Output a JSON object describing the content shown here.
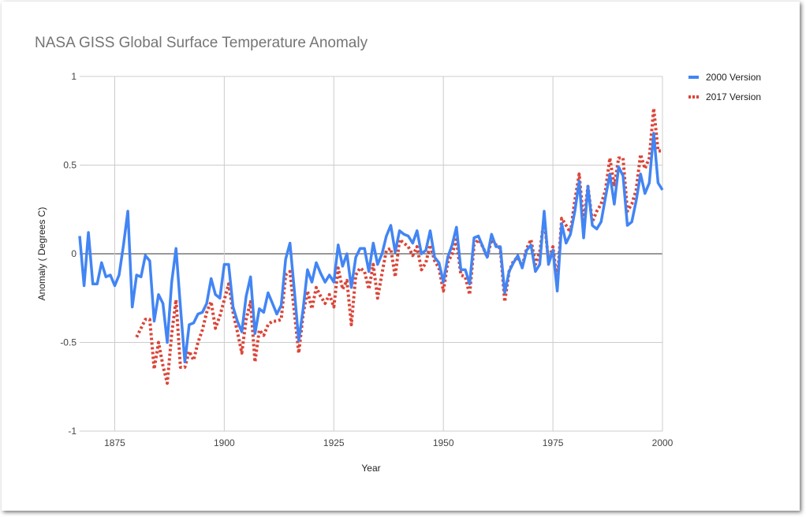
{
  "chart_data": {
    "type": "line",
    "title": "NASA GISS Global Surface Temperature Anomaly",
    "xlabel": "Year",
    "ylabel": "Anomaly ( Degrees C)",
    "xlim": [
      1867,
      2000
    ],
    "ylim": [
      -1,
      1
    ],
    "x_ticks": [
      "1875",
      "1900",
      "1925",
      "1950",
      "1975",
      "2000"
    ],
    "y_ticks": [
      "1",
      "0.5",
      "0",
      "-0.5",
      "-1"
    ],
    "grid": true,
    "legend_position": "right",
    "series": [
      {
        "name": "2000 Version",
        "color": "#4285f4",
        "style": "solid",
        "points": [
          [
            1867,
            0.1
          ],
          [
            1868,
            -0.18
          ],
          [
            1869,
            0.12
          ],
          [
            1870,
            -0.17
          ],
          [
            1871,
            -0.17
          ],
          [
            1872,
            -0.05
          ],
          [
            1873,
            -0.13
          ],
          [
            1874,
            -0.12
          ],
          [
            1875,
            -0.18
          ],
          [
            1876,
            -0.12
          ],
          [
            1877,
            0.05
          ],
          [
            1878,
            0.24
          ],
          [
            1879,
            -0.3
          ],
          [
            1880,
            -0.12
          ],
          [
            1881,
            -0.13
          ],
          [
            1882,
            -0.01
          ],
          [
            1883,
            -0.04
          ],
          [
            1884,
            -0.38
          ],
          [
            1885,
            -0.23
          ],
          [
            1886,
            -0.28
          ],
          [
            1887,
            -0.5
          ],
          [
            1888,
            -0.16
          ],
          [
            1889,
            0.03
          ],
          [
            1890,
            -0.3
          ],
          [
            1891,
            -0.61
          ],
          [
            1892,
            -0.4
          ],
          [
            1893,
            -0.39
          ],
          [
            1894,
            -0.34
          ],
          [
            1895,
            -0.33
          ],
          [
            1896,
            -0.28
          ],
          [
            1897,
            -0.14
          ],
          [
            1898,
            -0.23
          ],
          [
            1899,
            -0.25
          ],
          [
            1900,
            -0.06
          ],
          [
            1901,
            -0.06
          ],
          [
            1902,
            -0.3
          ],
          [
            1903,
            -0.38
          ],
          [
            1904,
            -0.44
          ],
          [
            1905,
            -0.24
          ],
          [
            1906,
            -0.13
          ],
          [
            1907,
            -0.45
          ],
          [
            1908,
            -0.31
          ],
          [
            1909,
            -0.33
          ],
          [
            1910,
            -0.22
          ],
          [
            1911,
            -0.28
          ],
          [
            1912,
            -0.34
          ],
          [
            1913,
            -0.29
          ],
          [
            1914,
            -0.03
          ],
          [
            1915,
            0.06
          ],
          [
            1916,
            -0.21
          ],
          [
            1917,
            -0.49
          ],
          [
            1918,
            -0.31
          ],
          [
            1919,
            -0.09
          ],
          [
            1920,
            -0.16
          ],
          [
            1921,
            -0.05
          ],
          [
            1922,
            -0.11
          ],
          [
            1923,
            -0.16
          ],
          [
            1924,
            -0.12
          ],
          [
            1925,
            -0.16
          ],
          [
            1926,
            0.05
          ],
          [
            1927,
            -0.07
          ],
          [
            1928,
            0.0
          ],
          [
            1929,
            -0.19
          ],
          [
            1930,
            -0.02
          ],
          [
            1931,
            0.03
          ],
          [
            1932,
            0.03
          ],
          [
            1933,
            -0.1
          ],
          [
            1934,
            0.06
          ],
          [
            1935,
            -0.06
          ],
          [
            1936,
            0.0
          ],
          [
            1937,
            0.1
          ],
          [
            1938,
            0.16
          ],
          [
            1939,
            0.01
          ],
          [
            1940,
            0.13
          ],
          [
            1941,
            0.11
          ],
          [
            1942,
            0.1
          ],
          [
            1943,
            0.06
          ],
          [
            1944,
            0.13
          ],
          [
            1945,
            0.0
          ],
          [
            1946,
            0.02
          ],
          [
            1947,
            0.13
          ],
          [
            1948,
            -0.02
          ],
          [
            1949,
            -0.05
          ],
          [
            1950,
            -0.16
          ],
          [
            1951,
            -0.02
          ],
          [
            1952,
            0.05
          ],
          [
            1953,
            0.15
          ],
          [
            1954,
            -0.09
          ],
          [
            1955,
            -0.09
          ],
          [
            1956,
            -0.17
          ],
          [
            1957,
            0.09
          ],
          [
            1958,
            0.1
          ],
          [
            1959,
            0.04
          ],
          [
            1960,
            -0.02
          ],
          [
            1961,
            0.11
          ],
          [
            1962,
            0.04
          ],
          [
            1963,
            0.04
          ],
          [
            1964,
            -0.22
          ],
          [
            1965,
            -0.1
          ],
          [
            1966,
            -0.05
          ],
          [
            1967,
            -0.01
          ],
          [
            1968,
            -0.08
          ],
          [
            1969,
            0.02
          ],
          [
            1970,
            0.05
          ],
          [
            1971,
            -0.1
          ],
          [
            1972,
            -0.06
          ],
          [
            1973,
            0.24
          ],
          [
            1974,
            -0.06
          ],
          [
            1975,
            0.02
          ],
          [
            1976,
            -0.21
          ],
          [
            1977,
            0.17
          ],
          [
            1978,
            0.06
          ],
          [
            1979,
            0.11
          ],
          [
            1980,
            0.24
          ],
          [
            1981,
            0.41
          ],
          [
            1982,
            0.09
          ],
          [
            1983,
            0.38
          ],
          [
            1984,
            0.16
          ],
          [
            1985,
            0.14
          ],
          [
            1986,
            0.18
          ],
          [
            1987,
            0.32
          ],
          [
            1988,
            0.45
          ],
          [
            1989,
            0.28
          ],
          [
            1990,
            0.49
          ],
          [
            1991,
            0.44
          ],
          [
            1992,
            0.16
          ],
          [
            1993,
            0.18
          ],
          [
            1994,
            0.3
          ],
          [
            1995,
            0.45
          ],
          [
            1996,
            0.34
          ],
          [
            1997,
            0.4
          ],
          [
            1998,
            0.68
          ],
          [
            1999,
            0.4
          ],
          [
            2000,
            0.36
          ]
        ]
      },
      {
        "name": "2017 Version",
        "color": "#db4437",
        "style": "dotted",
        "points": [
          [
            1880,
            -0.47
          ],
          [
            1881,
            -0.42
          ],
          [
            1882,
            -0.37
          ],
          [
            1883,
            -0.37
          ],
          [
            1884,
            -0.65
          ],
          [
            1885,
            -0.5
          ],
          [
            1886,
            -0.63
          ],
          [
            1887,
            -0.73
          ],
          [
            1888,
            -0.45
          ],
          [
            1889,
            -0.26
          ],
          [
            1890,
            -0.64
          ],
          [
            1891,
            -0.64
          ],
          [
            1892,
            -0.55
          ],
          [
            1893,
            -0.6
          ],
          [
            1894,
            -0.5
          ],
          [
            1895,
            -0.43
          ],
          [
            1896,
            -0.33
          ],
          [
            1897,
            -0.27
          ],
          [
            1898,
            -0.42
          ],
          [
            1899,
            -0.35
          ],
          [
            1900,
            -0.26
          ],
          [
            1901,
            -0.17
          ],
          [
            1902,
            -0.33
          ],
          [
            1903,
            -0.44
          ],
          [
            1904,
            -0.56
          ],
          [
            1905,
            -0.37
          ],
          [
            1906,
            -0.27
          ],
          [
            1907,
            -0.61
          ],
          [
            1908,
            -0.43
          ],
          [
            1909,
            -0.46
          ],
          [
            1910,
            -0.4
          ],
          [
            1911,
            -0.38
          ],
          [
            1912,
            -0.38
          ],
          [
            1913,
            -0.37
          ],
          [
            1914,
            -0.12
          ],
          [
            1915,
            -0.1
          ],
          [
            1916,
            -0.33
          ],
          [
            1917,
            -0.56
          ],
          [
            1918,
            -0.34
          ],
          [
            1919,
            -0.21
          ],
          [
            1920,
            -0.31
          ],
          [
            1921,
            -0.19
          ],
          [
            1922,
            -0.24
          ],
          [
            1923,
            -0.28
          ],
          [
            1924,
            -0.23
          ],
          [
            1925,
            -0.3
          ],
          [
            1926,
            -0.08
          ],
          [
            1927,
            -0.2
          ],
          [
            1928,
            -0.15
          ],
          [
            1929,
            -0.4
          ],
          [
            1930,
            -0.12
          ],
          [
            1931,
            -0.08
          ],
          [
            1932,
            -0.1
          ],
          [
            1933,
            -0.2
          ],
          [
            1934,
            -0.06
          ],
          [
            1935,
            -0.25
          ],
          [
            1936,
            -0.11
          ],
          [
            1937,
            0.02
          ],
          [
            1938,
            0.03
          ],
          [
            1939,
            -0.13
          ],
          [
            1940,
            0.08
          ],
          [
            1941,
            0.06
          ],
          [
            1942,
            0.04
          ],
          [
            1943,
            -0.01
          ],
          [
            1944,
            0.04
          ],
          [
            1945,
            -0.09
          ],
          [
            1946,
            -0.05
          ],
          [
            1947,
            0.05
          ],
          [
            1948,
            -0.04
          ],
          [
            1949,
            -0.08
          ],
          [
            1950,
            -0.21
          ],
          [
            1951,
            -0.05
          ],
          [
            1952,
            0.0
          ],
          [
            1953,
            0.08
          ],
          [
            1954,
            -0.12
          ],
          [
            1955,
            -0.13
          ],
          [
            1956,
            -0.23
          ],
          [
            1957,
            0.05
          ],
          [
            1958,
            0.08
          ],
          [
            1959,
            0.04
          ],
          [
            1960,
            -0.02
          ],
          [
            1961,
            0.08
          ],
          [
            1962,
            0.05
          ],
          [
            1963,
            0.03
          ],
          [
            1964,
            -0.27
          ],
          [
            1965,
            -0.1
          ],
          [
            1966,
            -0.04
          ],
          [
            1967,
            -0.02
          ],
          [
            1968,
            -0.07
          ],
          [
            1969,
            0.03
          ],
          [
            1970,
            0.08
          ],
          [
            1971,
            -0.06
          ],
          [
            1972,
            0.01
          ],
          [
            1973,
            0.2
          ],
          [
            1974,
            -0.04
          ],
          [
            1975,
            0.04
          ],
          [
            1976,
            -0.16
          ],
          [
            1977,
            0.2
          ],
          [
            1978,
            0.16
          ],
          [
            1979,
            0.12
          ],
          [
            1980,
            0.3
          ],
          [
            1981,
            0.45
          ],
          [
            1982,
            0.18
          ],
          [
            1983,
            0.38
          ],
          [
            1984,
            0.18
          ],
          [
            1985,
            0.24
          ],
          [
            1986,
            0.28
          ],
          [
            1987,
            0.36
          ],
          [
            1988,
            0.54
          ],
          [
            1989,
            0.38
          ],
          [
            1990,
            0.54
          ],
          [
            1991,
            0.54
          ],
          [
            1992,
            0.24
          ],
          [
            1993,
            0.28
          ],
          [
            1994,
            0.36
          ],
          [
            1995,
            0.56
          ],
          [
            1996,
            0.48
          ],
          [
            1997,
            0.54
          ],
          [
            1998,
            0.82
          ],
          [
            1999,
            0.58
          ],
          [
            2000,
            0.58
          ]
        ]
      }
    ]
  }
}
